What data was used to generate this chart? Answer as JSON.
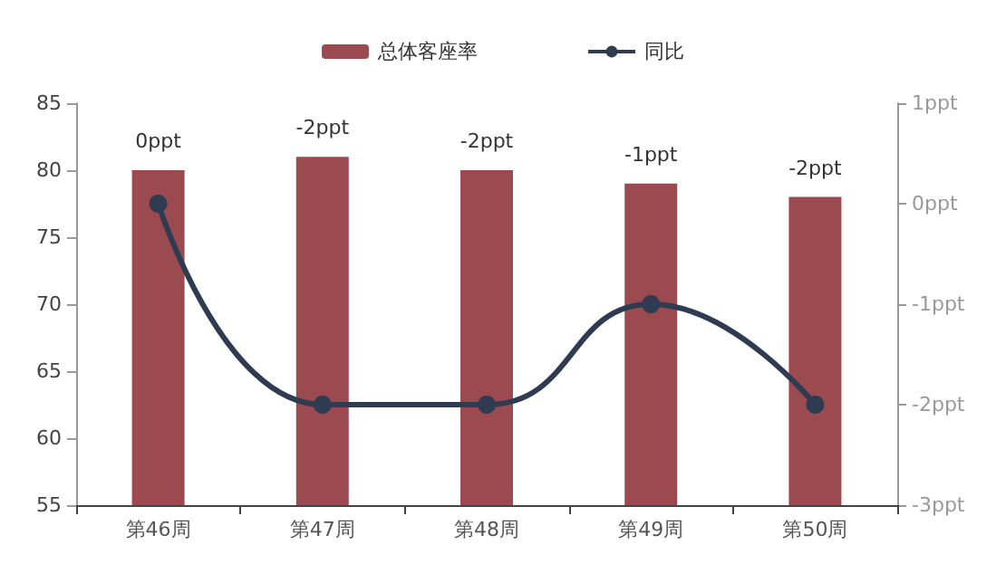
{
  "chart_data": {
    "type": "bar",
    "categories": [
      "第46周",
      "第47周",
      "第48周",
      "第49周",
      "第50周"
    ],
    "series": [
      {
        "name": "总体客座率",
        "color": "#9b4a50",
        "values": [
          80,
          81,
          80,
          79,
          78
        ]
      },
      {
        "name": "同比",
        "type": "line",
        "axis": "y2",
        "color": "#2f3b50",
        "values": [
          0,
          -2,
          -2,
          -1,
          -2
        ]
      }
    ],
    "annotations": [
      {
        "text": "0ppt",
        "x": "第46周",
        "y": 80
      },
      {
        "text": "-2ppt",
        "x": "第47周",
        "y": 81
      },
      {
        "text": "-2ppt",
        "x": "第48周",
        "y": 80
      },
      {
        "text": "-1ppt",
        "x": "第49周",
        "y": 79
      },
      {
        "text": "-2ppt",
        "x": "第50周",
        "y": 78
      }
    ],
    "ylim": [
      55,
      85
    ],
    "yticks": [
      55,
      60,
      65,
      70,
      75,
      80,
      85
    ],
    "y2lim": [
      -3,
      1
    ],
    "y2ticks": [
      {
        "value": -3,
        "label": "-3ppt"
      },
      {
        "value": -2,
        "label": "-2ppt"
      },
      {
        "value": -1,
        "label": "-1ppt"
      },
      {
        "value": 0,
        "label": "0ppt"
      },
      {
        "value": 1,
        "label": "1ppt"
      }
    ],
    "legend": "top",
    "marker": "circle",
    "line_style": "solid"
  }
}
